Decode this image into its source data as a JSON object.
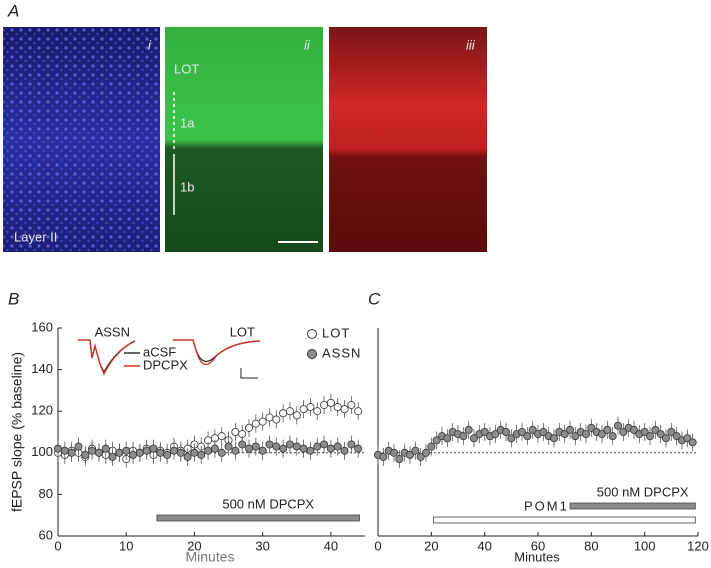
{
  "panel_a": {
    "label": "A",
    "images": [
      {
        "numeral": "i",
        "labels": [
          "Layer II"
        ]
      },
      {
        "numeral": "ii",
        "labels": [
          "LOT",
          "1a",
          "1b"
        ]
      },
      {
        "numeral": "iii",
        "labels": []
      }
    ]
  },
  "chart_data": [
    {
      "type": "scatter",
      "panel": "B",
      "y_label": "fEPSP slope (% baseline)",
      "x_label": "Minutes",
      "xlim": [
        0,
        45
      ],
      "xticks": [
        0,
        10,
        20,
        30,
        40
      ],
      "ylim": [
        60,
        160
      ],
      "yticks": [
        60,
        80,
        100,
        120,
        140,
        160
      ],
      "reference_line": 100,
      "x": [
        0,
        1,
        2,
        3,
        4,
        5,
        6,
        7,
        8,
        9,
        10,
        11,
        12,
        13,
        14,
        15,
        16,
        17,
        18,
        19,
        20,
        21,
        22,
        23,
        24,
        25,
        26,
        27,
        28,
        29,
        30,
        31,
        32,
        33,
        34,
        35,
        36,
        37,
        38,
        39,
        40,
        41,
        42,
        43,
        44
      ],
      "series": [
        {
          "name": "LOT",
          "color": "#ffffff",
          "values": [
            100,
            99,
            101,
            100,
            98,
            102,
            100,
            99,
            101,
            100,
            97,
            101,
            100,
            102,
            99,
            101,
            100,
            103,
            101,
            102,
            104,
            103,
            106,
            107,
            108,
            106,
            110,
            109,
            112,
            114,
            115,
            117,
            116,
            119,
            120,
            118,
            121,
            122,
            120,
            123,
            124,
            122,
            121,
            123,
            120
          ]
        },
        {
          "name": "ASSN",
          "color": "#8c8c8c",
          "values": [
            102,
            101,
            100,
            103,
            99,
            101,
            100,
            102,
            98,
            100,
            101,
            99,
            100,
            101,
            102,
            100,
            99,
            101,
            100,
            98,
            100,
            99,
            101,
            102,
            100,
            103,
            101,
            104,
            102,
            103,
            101,
            104,
            103,
            102,
            104,
            103,
            102,
            101,
            103,
            104,
            102,
            103,
            101,
            104,
            102
          ]
        }
      ],
      "annotations": [
        {
          "text": "500 nM DPCPX",
          "start": 14.5,
          "end": 44.2,
          "color": "#8c8c8c"
        }
      ],
      "inset": {
        "traces": [
          "ASSN",
          "LOT"
        ],
        "conditions": [
          {
            "name": "aCSF",
            "color": "#333333"
          },
          {
            "name": "DPCPX",
            "color": "#d03020"
          }
        ]
      }
    },
    {
      "type": "scatter",
      "panel": "C",
      "x_label": "Minutes",
      "xlim": [
        0,
        120
      ],
      "xticks": [
        0,
        20,
        40,
        60,
        80,
        100,
        120
      ],
      "ylim": [
        60,
        160
      ],
      "reference_line": 100,
      "x": [
        0,
        2,
        4,
        6,
        8,
        10,
        12,
        14,
        16,
        18,
        20,
        22,
        24,
        26,
        28,
        30,
        32,
        34,
        36,
        38,
        40,
        42,
        44,
        46,
        48,
        50,
        52,
        54,
        56,
        58,
        60,
        62,
        64,
        66,
        68,
        70,
        72,
        74,
        76,
        78,
        80,
        82,
        84,
        86,
        88,
        90,
        92,
        94,
        96,
        98,
        100,
        102,
        104,
        106,
        108,
        110,
        112,
        114,
        116,
        118
      ],
      "series": [
        {
          "color": "#8c8c8c",
          "values": [
            99,
            98,
            101,
            100,
            97,
            100,
            99,
            101,
            98,
            100,
            103,
            106,
            108,
            107,
            110,
            109,
            108,
            111,
            107,
            109,
            110,
            108,
            109,
            111,
            110,
            107,
            109,
            110,
            108,
            111,
            109,
            110,
            108,
            107,
            110,
            109,
            111,
            108,
            110,
            109,
            112,
            110,
            109,
            111,
            108,
            113,
            110,
            112,
            111,
            109,
            110,
            108,
            111,
            109,
            107,
            110,
            108,
            106,
            107,
            105
          ]
        }
      ],
      "annotations": [
        {
          "text": "POM1",
          "start": 20.8,
          "end": 119,
          "color": "#ffffff"
        },
        {
          "text": "500 nM DPCPX",
          "start": 72,
          "end": 119,
          "color": "#8c8c8c"
        }
      ]
    }
  ]
}
